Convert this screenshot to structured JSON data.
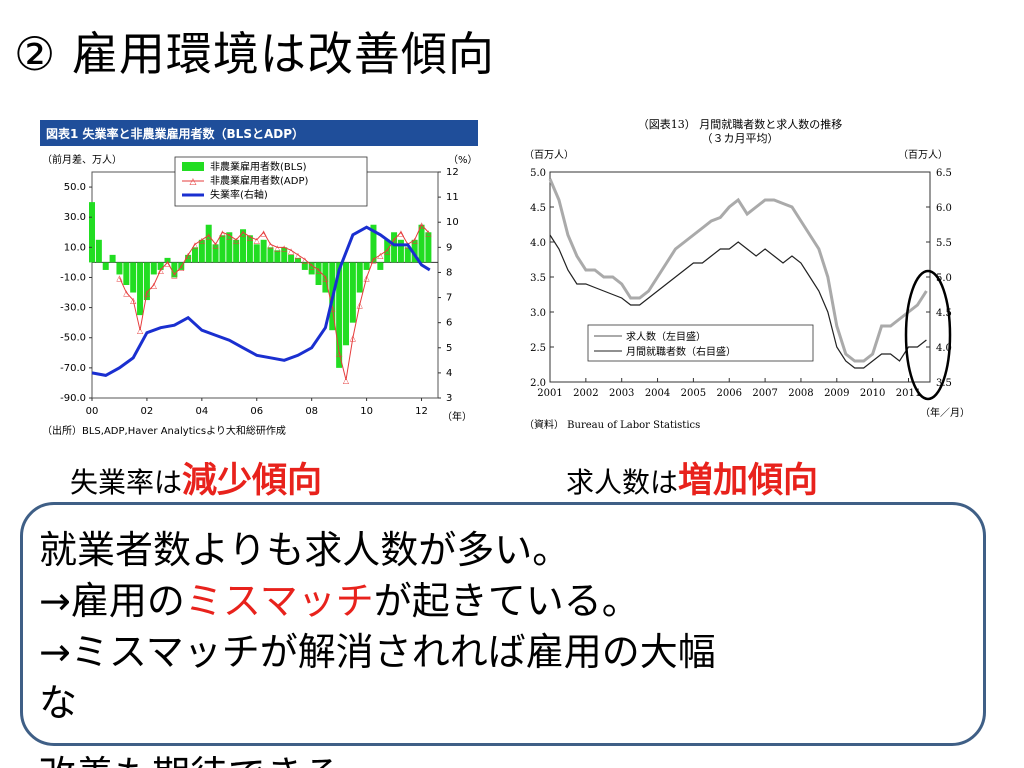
{
  "slide": {
    "title": "② 雇用環境は改善傾向",
    "caption_left": {
      "pre": "失業率は",
      "highlight": "減少傾向"
    },
    "caption_right": {
      "pre": "求人数は",
      "highlight": "増加傾向"
    },
    "note_lines": [
      {
        "pre": "就業者数よりも求人数が多い。",
        "red": "",
        "post": ""
      },
      {
        "pre": "→雇用の",
        "red": "ミスマッチ",
        "post": "が起きている。"
      },
      {
        "pre": "→ミスマッチが解消されれば雇用の大幅",
        "red": "",
        "post": ""
      },
      {
        "pre": "な",
        "red": "",
        "post": ""
      }
    ],
    "overflow_text": "改善も期待できる",
    "colors": {
      "accent_red": "#e8221c",
      "box_border": "#3f5f86",
      "left_header": "#1f4e9a"
    }
  },
  "chart_data": [
    {
      "type": "bar",
      "title": "図表1 失業率と非農業雇用者数（BLSとADP）",
      "ylabel_left": "（前月差、万人）",
      "ylabel_right": "（%）",
      "xlabel": "（年）",
      "source": "（出所）BLS,ADP,Haver Analyticsより大和総研作成",
      "x_range": [
        2000,
        2012.6
      ],
      "x_ticks": [
        "00",
        "02",
        "04",
        "06",
        "08",
        "10",
        "12"
      ],
      "ylim_left": [
        -90,
        60
      ],
      "y_ticks_left": [
        "50.0",
        "30.0",
        "10.0",
        "-10.0",
        "-30.0",
        "-50.0",
        "-70.0",
        "-90.0"
      ],
      "ylim_right": [
        3,
        12
      ],
      "y_ticks_right": [
        "12",
        "11",
        "10",
        "9",
        "8",
        "7",
        "6",
        "5",
        "4",
        "3"
      ],
      "legend": [
        "非農業雇用者数(BLS)",
        "非農業雇用者数(ADP)",
        "失業率(右軸)"
      ],
      "series": [
        {
          "name": "非農業雇用者数(BLS)",
          "axis": "left",
          "kind": "bar",
          "color": "#22dd22",
          "x": [
            2000.0,
            2000.25,
            2000.5,
            2000.75,
            2001.0,
            2001.25,
            2001.5,
            2001.75,
            2002.0,
            2002.25,
            2002.5,
            2002.75,
            2003.0,
            2003.25,
            2003.5,
            2003.75,
            2004.0,
            2004.25,
            2004.5,
            2004.75,
            2005.0,
            2005.25,
            2005.5,
            2005.75,
            2006.0,
            2006.25,
            2006.5,
            2006.75,
            2007.0,
            2007.25,
            2007.5,
            2007.75,
            2008.0,
            2008.25,
            2008.5,
            2008.75,
            2009.0,
            2009.25,
            2009.5,
            2009.75,
            2010.0,
            2010.25,
            2010.5,
            2010.75,
            2011.0,
            2011.25,
            2011.5,
            2011.75,
            2012.0,
            2012.25
          ],
          "values": [
            40,
            15,
            -5,
            5,
            -8,
            -15,
            -20,
            -35,
            -25,
            -8,
            -5,
            3,
            -10,
            -5,
            5,
            10,
            15,
            25,
            12,
            18,
            20,
            15,
            22,
            18,
            12,
            15,
            10,
            8,
            10,
            5,
            3,
            -5,
            -8,
            -15,
            -20,
            -45,
            -70,
            -55,
            -40,
            -20,
            -5,
            25,
            -5,
            15,
            20,
            15,
            10,
            15,
            25,
            20
          ]
        },
        {
          "name": "非農業雇用者数(ADP)",
          "axis": "left",
          "kind": "line",
          "color": "#e63c3c",
          "x": [
            2001.0,
            2001.25,
            2001.5,
            2001.75,
            2002.0,
            2002.25,
            2002.5,
            2002.75,
            2003.0,
            2003.25,
            2003.5,
            2003.75,
            2004.0,
            2004.25,
            2004.5,
            2004.75,
            2005.0,
            2005.25,
            2005.5,
            2005.75,
            2006.0,
            2006.25,
            2006.5,
            2006.75,
            2007.0,
            2007.25,
            2007.5,
            2007.75,
            2008.0,
            2008.25,
            2008.5,
            2008.75,
            2009.0,
            2009.25,
            2009.5,
            2009.75,
            2010.0,
            2010.25,
            2010.5,
            2010.75,
            2011.0,
            2011.25,
            2011.5,
            2011.75,
            2012.0,
            2012.25
          ],
          "values": [
            -10,
            -20,
            -25,
            -45,
            -20,
            -15,
            -5,
            0,
            -8,
            -3,
            5,
            12,
            15,
            18,
            12,
            20,
            18,
            15,
            20,
            17,
            15,
            20,
            12,
            10,
            10,
            8,
            5,
            2,
            -2,
            -5,
            -10,
            -30,
            -60,
            -78,
            -50,
            -28,
            -10,
            2,
            5,
            8,
            15,
            20,
            12,
            15,
            25,
            20
          ]
        },
        {
          "name": "失業率(右軸)",
          "axis": "right",
          "kind": "line",
          "color": "#1a2fd0",
          "x": [
            2000.0,
            2000.5,
            2001.0,
            2001.5,
            2002.0,
            2002.5,
            2003.0,
            2003.5,
            2004.0,
            2004.5,
            2005.0,
            2005.5,
            2006.0,
            2006.5,
            2007.0,
            2007.5,
            2008.0,
            2008.5,
            2009.0,
            2009.5,
            2010.0,
            2010.5,
            2011.0,
            2011.5,
            2012.0,
            2012.3
          ],
          "values": [
            4.0,
            3.9,
            4.2,
            4.6,
            5.6,
            5.8,
            5.9,
            6.2,
            5.7,
            5.5,
            5.3,
            5.0,
            4.7,
            4.6,
            4.5,
            4.7,
            5.0,
            5.8,
            8.1,
            9.5,
            9.8,
            9.5,
            9.1,
            9.1,
            8.3,
            8.1
          ]
        }
      ]
    },
    {
      "type": "line",
      "title": "（図表13） 月間就職者数と求人数の推移",
      "subtitle": "（３カ月平均）",
      "ylabel_left": "（百万人）",
      "ylabel_right": "（百万人）",
      "xlabel": "（年／月）",
      "source": "（資料） Bureau of Labor Statistics",
      "x_ticks": [
        "2001",
        "2002",
        "2003",
        "2004",
        "2005",
        "2006",
        "2007",
        "2008",
        "2009",
        "2010",
        "2011"
      ],
      "x_range": [
        2001,
        2011.6
      ],
      "ylim_left": [
        2.0,
        5.0
      ],
      "y_ticks_left": [
        "5.0",
        "4.5",
        "4.0",
        "3.5",
        "3.0",
        "2.5",
        "2.0"
      ],
      "ylim_right": [
        3.5,
        6.5
      ],
      "y_ticks_right": [
        "6.5",
        "6.0",
        "5.5",
        "5.0",
        "4.5",
        "4.0",
        "3.5"
      ],
      "legend": [
        "求人数（左目盛）",
        "月間就職者数（右目盛）"
      ],
      "series": [
        {
          "name": "求人数（左目盛）",
          "axis": "left",
          "color": "#aaaaaa",
          "x": [
            2001.0,
            2001.25,
            2001.5,
            2001.75,
            2002.0,
            2002.25,
            2002.5,
            2002.75,
            2003.0,
            2003.25,
            2003.5,
            2003.75,
            2004.0,
            2004.25,
            2004.5,
            2004.75,
            2005.0,
            2005.25,
            2005.5,
            2005.75,
            2006.0,
            2006.25,
            2006.5,
            2006.75,
            2007.0,
            2007.25,
            2007.5,
            2007.75,
            2008.0,
            2008.25,
            2008.5,
            2008.75,
            2009.0,
            2009.25,
            2009.5,
            2009.75,
            2010.0,
            2010.25,
            2010.5,
            2010.75,
            2011.0,
            2011.25,
            2011.5
          ],
          "values": [
            4.9,
            4.6,
            4.1,
            3.8,
            3.6,
            3.6,
            3.5,
            3.5,
            3.4,
            3.2,
            3.2,
            3.3,
            3.5,
            3.7,
            3.9,
            4.0,
            4.1,
            4.2,
            4.3,
            4.35,
            4.5,
            4.6,
            4.4,
            4.5,
            4.6,
            4.6,
            4.55,
            4.5,
            4.3,
            4.1,
            3.9,
            3.5,
            2.8,
            2.4,
            2.3,
            2.3,
            2.4,
            2.8,
            2.8,
            2.9,
            3.0,
            3.1,
            3.3
          ]
        },
        {
          "name": "月間就職者数（右目盛）",
          "axis": "right",
          "color": "#222222",
          "x": [
            2001.0,
            2001.25,
            2001.5,
            2001.75,
            2002.0,
            2002.25,
            2002.5,
            2002.75,
            2003.0,
            2003.25,
            2003.5,
            2003.75,
            2004.0,
            2004.25,
            2004.5,
            2004.75,
            2005.0,
            2005.25,
            2005.5,
            2005.75,
            2006.0,
            2006.25,
            2006.5,
            2006.75,
            2007.0,
            2007.25,
            2007.5,
            2007.75,
            2008.0,
            2008.25,
            2008.5,
            2008.75,
            2009.0,
            2009.25,
            2009.5,
            2009.75,
            2010.0,
            2010.25,
            2010.5,
            2010.75,
            2011.0,
            2011.25,
            2011.5
          ],
          "values": [
            5.6,
            5.4,
            5.1,
            4.9,
            4.9,
            4.85,
            4.8,
            4.75,
            4.7,
            4.6,
            4.6,
            4.7,
            4.8,
            4.9,
            5.0,
            5.1,
            5.2,
            5.2,
            5.3,
            5.4,
            5.4,
            5.5,
            5.4,
            5.3,
            5.4,
            5.3,
            5.2,
            5.3,
            5.2,
            5.0,
            4.8,
            4.5,
            4.0,
            3.8,
            3.7,
            3.7,
            3.8,
            3.9,
            3.9,
            3.8,
            4.0,
            4.0,
            4.1
          ]
        }
      ]
    }
  ]
}
